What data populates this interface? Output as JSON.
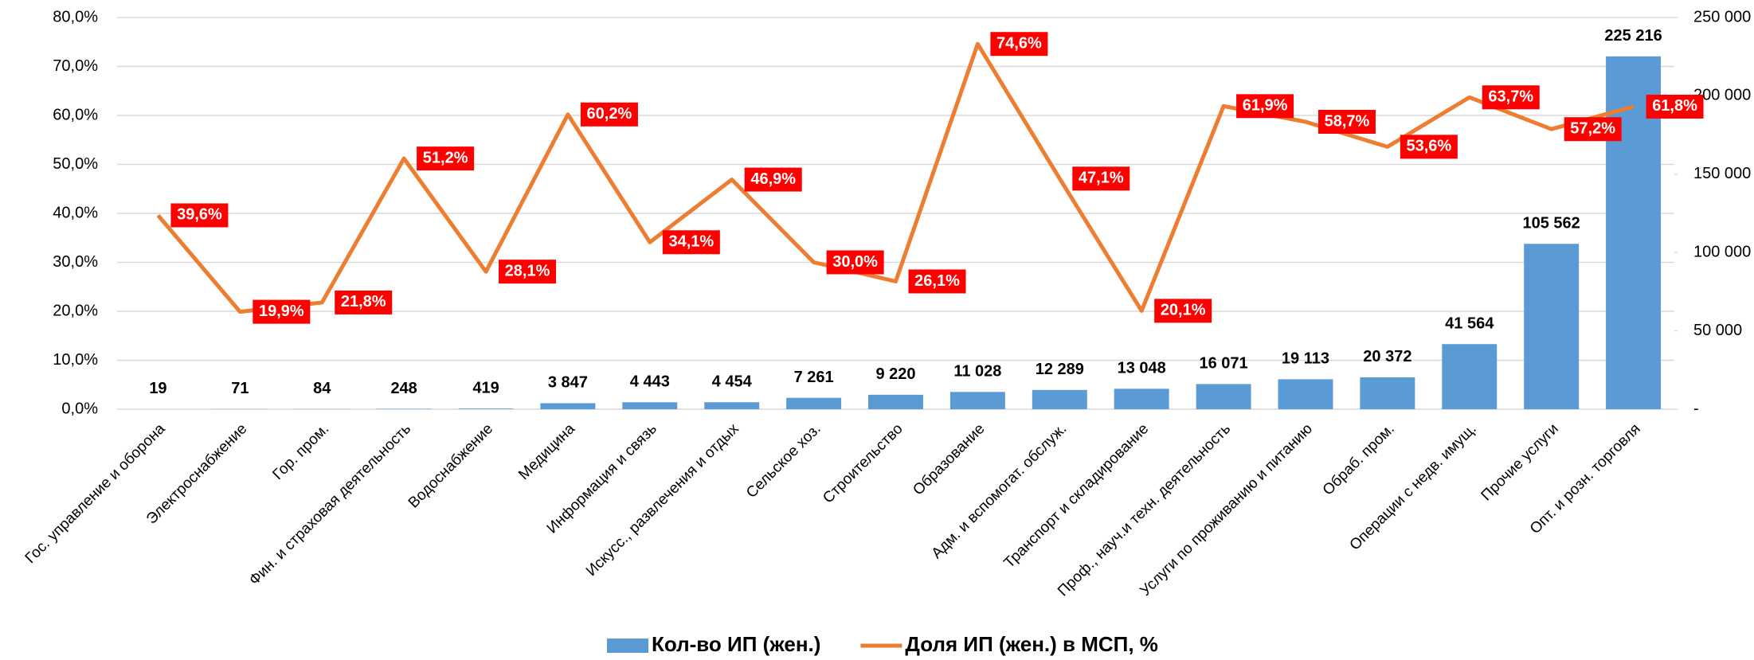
{
  "chart_data": {
    "type": "bar",
    "categories": [
      "Гос. управление и оборона",
      "Электроснабжение",
      "Гор. пром.",
      "Фин. и страховая деятельность",
      "Водоснабжение",
      "Медицина",
      "Информация и связь",
      "Искусс., развлечения и отдых",
      "Сельское хоз.",
      "Строительство",
      "Образование",
      "Адм. и вспомогат. обслуж.",
      "Транспорт и складирование",
      "Проф., науч.и техн. деятельность",
      "Услуги по проживанию и питанию",
      "Обраб. пром.",
      "Операции с недв. имущ.",
      "Прочие услуги",
      "Опт. и розн. торговля"
    ],
    "series": [
      {
        "name": "Кол-во ИП (жен.)",
        "color": "#5b9bd5",
        "type": "bar",
        "axis": "y2",
        "values": [
          19,
          71,
          84,
          248,
          419,
          3847,
          4443,
          4454,
          7261,
          9220,
          11028,
          12289,
          13048,
          16071,
          19113,
          20372,
          41564,
          105562,
          225216
        ],
        "value_labels": [
          "19",
          "71",
          "84",
          "248",
          "419",
          "3 847",
          "4 443",
          "4 454",
          "7 261",
          "9 220",
          "11 028",
          "12 289",
          "13 048",
          "16 071",
          "19 113",
          "20 372",
          "41 564",
          "105 562",
          "225 216"
        ]
      },
      {
        "name": "Доля ИП (жен.) в МСП, %",
        "color": "#ed7d31",
        "type": "line",
        "values": [
          39.6,
          19.9,
          21.8,
          51.2,
          28.1,
          60.2,
          34.1,
          46.9,
          30.0,
          26.1,
          74.6,
          47.1,
          20.1,
          61.9,
          58.7,
          53.6,
          63.7,
          57.2,
          61.8
        ],
        "value_labels": [
          "39,6%",
          "19,9%",
          "21,8%",
          "51,2%",
          "28,1%",
          "60,2%",
          "34,1%",
          "46,9%",
          "30,0%",
          "26,1%",
          "74,6%",
          "47,1%",
          "20,1%",
          "61,9%",
          "58,7%",
          "53,6%",
          "63,7%",
          "57,2%",
          "61,8%"
        ]
      }
    ],
    "ylim": [
      0,
      80
    ],
    "yticks": [
      {
        "value": 0,
        "label": "0,0%"
      },
      {
        "value": 10,
        "label": "10,0%"
      },
      {
        "value": 20,
        "label": "20,0%"
      },
      {
        "value": 30,
        "label": "30,0%"
      },
      {
        "value": 40,
        "label": "40,0%"
      },
      {
        "value": 50,
        "label": "50,0%"
      },
      {
        "value": 60,
        "label": "60,0%"
      },
      {
        "value": 70,
        "label": "70,0%"
      },
      {
        "value": 80,
        "label": "80,0%"
      }
    ],
    "y2lim": [
      0,
      250000
    ],
    "y2ticks": [
      {
        "value": 0,
        "label": "-"
      },
      {
        "value": 50000,
        "label": "50 000"
      },
      {
        "value": 100000,
        "label": "100 000"
      },
      {
        "value": 150000,
        "label": "150 000"
      },
      {
        "value": 200000,
        "label": "200 000"
      },
      {
        "value": 250000,
        "label": "250 000"
      }
    ],
    "grid": true,
    "legend": "bottom"
  }
}
